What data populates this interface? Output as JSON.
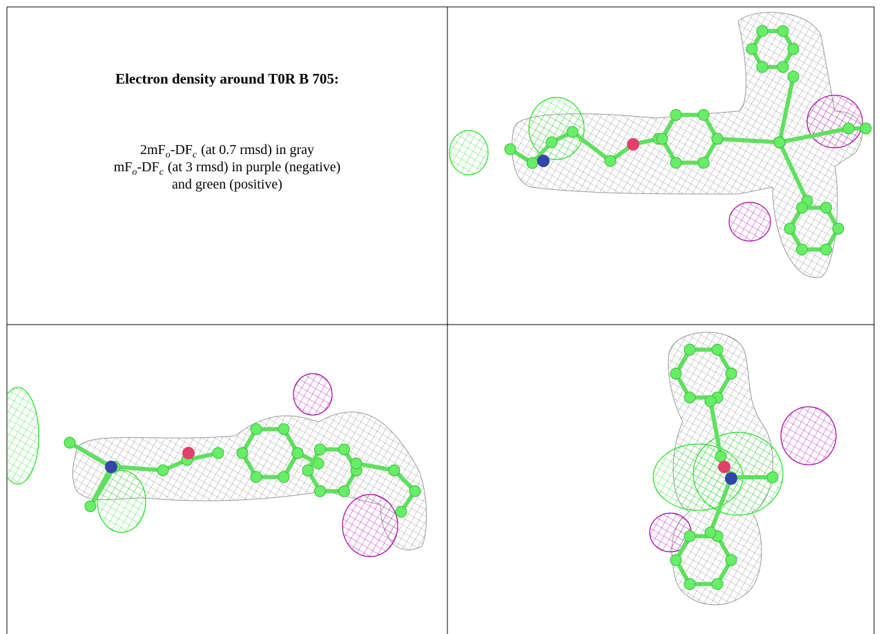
{
  "caption": {
    "title": "Electron density around T0R B 705:",
    "lines": [
      [
        "2mF",
        "o",
        "-DF",
        "c",
        "(at 0.7 rmsd) in gray"
      ],
      [
        "mF",
        "o",
        "-DF",
        "c",
        "(at 3 rmsd) in purple (negative)"
      ],
      [
        "and green (positive)"
      ]
    ]
  }
}
